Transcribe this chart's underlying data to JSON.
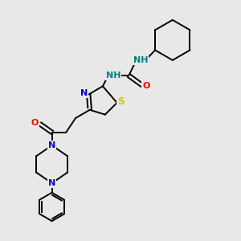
{
  "bg_color": "#e8e8e8",
  "bond_color": "#000000",
  "atom_colors": {
    "N": "#0000cc",
    "S": "#cccc00",
    "O": "#ff0000",
    "NH": "#008080",
    "C": "#000000"
  },
  "figsize": [
    3.0,
    3.0
  ],
  "dpi": 100
}
